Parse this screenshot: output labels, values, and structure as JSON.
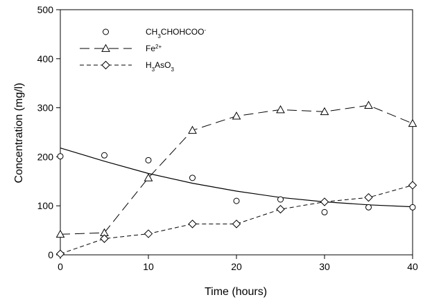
{
  "chart_data": {
    "type": "scatter",
    "xlabel": "Time (hours)",
    "ylabel": "Concentration (mg/l)",
    "xlim": [
      0,
      40
    ],
    "ylim": [
      0,
      500
    ],
    "xticks": [
      0,
      10,
      20,
      30,
      40
    ],
    "yticks": [
      0,
      100,
      200,
      300,
      400,
      500
    ],
    "grid": false,
    "legend_position": "top-left",
    "x": [
      0,
      5,
      10,
      15,
      20,
      25,
      30,
      35,
      40
    ],
    "series": [
      {
        "name": "CH3CHOHCOO-",
        "label_parts": [
          [
            "CH",
            ""
          ],
          [
            "3",
            "sub"
          ],
          [
            "CHOHCOO",
            ""
          ],
          [
            "-",
            "sup"
          ]
        ],
        "marker": "circle",
        "line": "none",
        "values": [
          201,
          203,
          193,
          157,
          110,
          113,
          87,
          97,
          97
        ]
      },
      {
        "name": "Fe2+",
        "label_parts": [
          [
            "Fe",
            ""
          ],
          [
            "2+",
            "sup"
          ]
        ],
        "marker": "triangle",
        "line": "long-dash",
        "values": [
          42,
          45,
          157,
          254,
          283,
          296,
          292,
          305,
          268
        ]
      },
      {
        "name": "H3AsO3",
        "label_parts": [
          [
            "H",
            ""
          ],
          [
            "3",
            "sub"
          ],
          [
            "AsO",
            ""
          ],
          [
            "3",
            "sub"
          ]
        ],
        "marker": "diamond",
        "line": "short-dash",
        "values": [
          2,
          33,
          43,
          63,
          63,
          93,
          108,
          117,
          142
        ]
      }
    ],
    "fit_curve": {
      "type": "exponential-decay",
      "x": [
        0,
        5,
        10,
        15,
        20,
        25,
        30,
        35,
        40
      ],
      "y": [
        218,
        191,
        166,
        146,
        130,
        117,
        108,
        102,
        98
      ]
    }
  }
}
